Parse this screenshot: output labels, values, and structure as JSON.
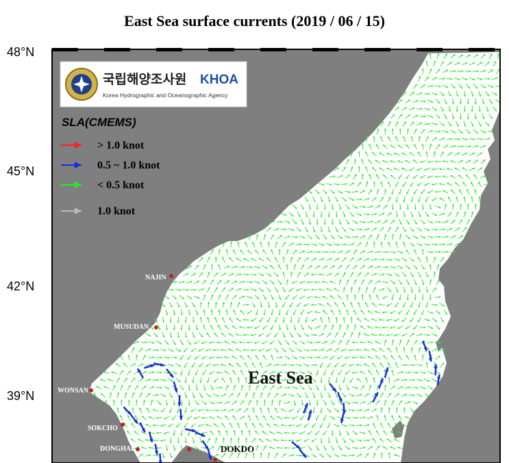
{
  "title": "East Sea surface currents (2019 / 06 / 15)",
  "lat_labels": [
    "48°N",
    "45°N",
    "42°N",
    "39°N"
  ],
  "logo": {
    "korean": "국립해양조사원",
    "abbr": "KHOA",
    "english": "Korea Hydrographic and Oceanographic Agency"
  },
  "legend": {
    "source": "SLA(CMEMS)",
    "items": [
      {
        "label": "> 1.0 knot",
        "color": "#ff2020"
      },
      {
        "label": "0.5 ~ 1.0 knot",
        "color": "#1a2be0"
      },
      {
        "label": "< 0.5 knot",
        "color": "#22ee22"
      },
      {
        "label": "1.0 knot",
        "color": "#bbbbbb"
      }
    ]
  },
  "places": [
    "NAJIN",
    "MUSUDAN",
    "WONSAN",
    "SOKCHO",
    "DONGHAE",
    "DOKDO"
  ],
  "sea_label": "East Sea",
  "colors": {
    "land": "#7f7f7f",
    "sea": "#ffffff",
    "slow": "#22ee22",
    "medium": "#1a2be0",
    "fast": "#ff2020"
  }
}
